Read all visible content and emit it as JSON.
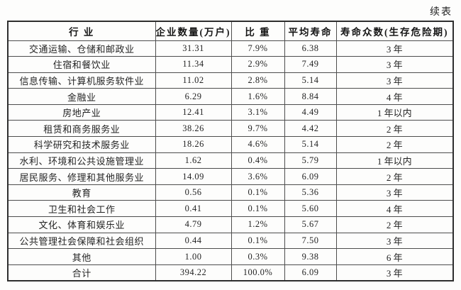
{
  "page": {
    "continuation_label": "续表"
  },
  "table": {
    "columns": [
      "行 业",
      "企业数量(万户)",
      "比 重",
      "平均寿命",
      "寿命众数(生存危险期)"
    ],
    "rows": [
      {
        "industry": "交通运输、仓储和邮政业",
        "enterprise_count": "31.31",
        "share": "7.9%",
        "avg_lifespan": "6.38",
        "lifespan_mode": "3 年"
      },
      {
        "industry": "住宿和餐饮业",
        "enterprise_count": "11.34",
        "share": "2.9%",
        "avg_lifespan": "7.49",
        "lifespan_mode": "3 年"
      },
      {
        "industry": "信息传输、计算机服务软件业",
        "enterprise_count": "11.02",
        "share": "2.8%",
        "avg_lifespan": "5.14",
        "lifespan_mode": "3 年"
      },
      {
        "industry": "金融业",
        "enterprise_count": "6.29",
        "share": "1.6%",
        "avg_lifespan": "8.84",
        "lifespan_mode": "4 年"
      },
      {
        "industry": "房地产业",
        "enterprise_count": "12.41",
        "share": "3.1%",
        "avg_lifespan": "4.49",
        "lifespan_mode": "1 年以内"
      },
      {
        "industry": "租赁和商务服务业",
        "enterprise_count": "38.26",
        "share": "9.7%",
        "avg_lifespan": "4.42",
        "lifespan_mode": "2 年"
      },
      {
        "industry": "科学研究和技术服务业",
        "enterprise_count": "18.26",
        "share": "4.6%",
        "avg_lifespan": "5.14",
        "lifespan_mode": "2 年"
      },
      {
        "industry": "水利、环境和公共设施管理业",
        "enterprise_count": "1.62",
        "share": "0.4%",
        "avg_lifespan": "5.79",
        "lifespan_mode": "1 年以内"
      },
      {
        "industry": "居民服务、修理和其他服务业",
        "enterprise_count": "14.09",
        "share": "3.6%",
        "avg_lifespan": "6.09",
        "lifespan_mode": "2 年"
      },
      {
        "industry": "教育",
        "enterprise_count": "0.56",
        "share": "0.1%",
        "avg_lifespan": "5.36",
        "lifespan_mode": "3 年"
      },
      {
        "industry": "卫生和社会工作",
        "enterprise_count": "0.41",
        "share": "0.1%",
        "avg_lifespan": "5.60",
        "lifespan_mode": "4 年"
      },
      {
        "industry": "文化、体育和娱乐业",
        "enterprise_count": "4.79",
        "share": "1.2%",
        "avg_lifespan": "5.67",
        "lifespan_mode": "2 年"
      },
      {
        "industry": "公共管理社会保障和社会组织",
        "enterprise_count": "0.44",
        "share": "0.1%",
        "avg_lifespan": "7.50",
        "lifespan_mode": "3 年"
      },
      {
        "industry": "其他",
        "enterprise_count": "1.00",
        "share": "0.3%",
        "avg_lifespan": "9.38",
        "lifespan_mode": "6 年"
      },
      {
        "industry": "合计",
        "enterprise_count": "394.22",
        "share": "100.0%",
        "avg_lifespan": "6.09",
        "lifespan_mode": "3 年"
      }
    ]
  }
}
